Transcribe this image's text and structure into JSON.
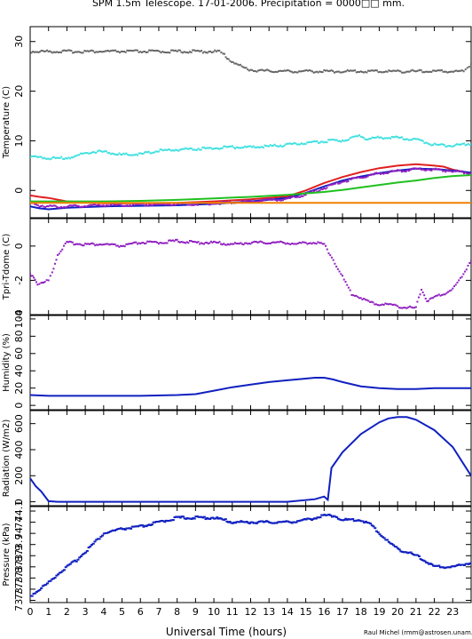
{
  "title": "SPM 1.5m Telescope. 17-01-2006. Precipitation = 0000□□ mm.",
  "xlabel": "Universal Time (hours)",
  "credit": "Raul Michel (rmm@astrosen.unam.mx)",
  "chart_data": [
    {
      "type": "line",
      "ylabel": "Temperature (C)",
      "xlim": [
        0,
        24
      ],
      "ylim": [
        -5.5,
        33
      ],
      "yticks": [
        0,
        10,
        20,
        30
      ],
      "series": [
        {
          "color": "#666666",
          "style": "dots",
          "x": [
            0,
            1,
            2,
            4,
            6,
            8,
            9,
            10.3,
            10.5,
            10.8,
            11.2,
            11.6,
            12,
            12.5,
            14,
            16,
            18,
            20,
            22,
            23.6,
            23.8,
            24
          ],
          "y": [
            28,
            28,
            28,
            28,
            28,
            28,
            28,
            28,
            27.5,
            26.5,
            25.5,
            24.8,
            24.3,
            24.1,
            24,
            24,
            24,
            24,
            24,
            24,
            24.8,
            25.5
          ]
        },
        {
          "color": "#40e0e0",
          "style": "dots",
          "x": [
            0,
            1,
            1.7,
            2.5,
            3,
            3.5,
            4,
            5,
            6,
            7,
            8,
            9,
            10,
            11,
            12,
            13,
            14,
            15,
            16,
            17,
            17.5,
            18,
            18.3,
            18.7,
            19,
            20,
            21,
            22,
            23,
            24
          ],
          "y": [
            6.8,
            6.5,
            6.5,
            6.8,
            7.6,
            7.8,
            7.8,
            7.2,
            7.3,
            8,
            8.2,
            8.4,
            8.5,
            8.7,
            8.7,
            8.9,
            9.2,
            9.6,
            9.9,
            10.1,
            10.6,
            11,
            10.4,
            10.6,
            10.6,
            10.6,
            10.2,
            9.2,
            9.0,
            9.5
          ]
        },
        {
          "color": "#e02020",
          "style": "line",
          "x": [
            0,
            0.5,
            1,
            2,
            4,
            6,
            8,
            10,
            12,
            14,
            15,
            16,
            17,
            18,
            19,
            20,
            21,
            22,
            22.5,
            23,
            23.5,
            24
          ],
          "y": [
            -1,
            -1.3,
            -1.5,
            -2.2,
            -2.6,
            -2.6,
            -2.5,
            -2.2,
            -1.8,
            -1.2,
            0,
            1.5,
            2.7,
            3.7,
            4.5,
            5.0,
            5.3,
            5.0,
            4.8,
            4.2,
            3.8,
            3.4
          ]
        },
        {
          "color": "#1020c0",
          "style": "line",
          "x": [
            0,
            0.5,
            1,
            2,
            4,
            6,
            8,
            10,
            12,
            14,
            15,
            16,
            17,
            18,
            19,
            20,
            21,
            22,
            23,
            24
          ],
          "y": [
            -3.2,
            -3.6,
            -3.8,
            -3.5,
            -3.2,
            -3.1,
            -3.0,
            -2.7,
            -2.2,
            -1.5,
            -0.5,
            0.8,
            2.0,
            2.8,
            3.5,
            4.0,
            4.4,
            4.3,
            4.0,
            3.6
          ]
        },
        {
          "color": "#9020c0",
          "style": "dots",
          "x": [
            0,
            0.5,
            1,
            2,
            4,
            6,
            8,
            10,
            12,
            14,
            15,
            16,
            17,
            18,
            19,
            20,
            21,
            22,
            23,
            24
          ],
          "y": [
            -2.5,
            -3.0,
            -3.3,
            -3.2,
            -3.0,
            -2.9,
            -2.8,
            -2.6,
            -2.2,
            -1.7,
            -0.8,
            0.5,
            1.8,
            2.7,
            3.4,
            3.9,
            4.3,
            4.2,
            3.9,
            3.5
          ]
        },
        {
          "color": "#20c020",
          "style": "line",
          "x": [
            0,
            2,
            4,
            6,
            8,
            10,
            12,
            13,
            14,
            15,
            16,
            17,
            18,
            19,
            20,
            21,
            22,
            23,
            24
          ],
          "y": [
            -2.2,
            -2.2,
            -2.2,
            -2.1,
            -1.9,
            -1.6,
            -1.3,
            -1.1,
            -0.9,
            -0.6,
            -0.3,
            0.1,
            0.6,
            1.1,
            1.6,
            2.0,
            2.5,
            2.9,
            3.1
          ]
        },
        {
          "color": "#f08000",
          "style": "line",
          "x": [
            0,
            24
          ],
          "y": [
            -2.5,
            -2.5
          ]
        }
      ]
    },
    {
      "type": "scatter",
      "ylabel": "Tpri-Tdome (C)",
      "xlim": [
        0,
        24
      ],
      "ylim": [
        -4,
        1.6
      ],
      "yticks": [
        0,
        -2,
        -4
      ],
      "ytick_labels": [
        "0",
        "-2",
        "-4"
      ],
      "series": [
        {
          "color": "#9020c0",
          "x": [
            0,
            0.2,
            0.4,
            0.6,
            0.8,
            1.0,
            1.2,
            1.5,
            2,
            3,
            4,
            5,
            6,
            7,
            8,
            9,
            10,
            11,
            12,
            13,
            14,
            14.5,
            15,
            15.5,
            16,
            16.5,
            17,
            17.5,
            18,
            18.5,
            19,
            19.5,
            20,
            20.5,
            21,
            21.3,
            21.6,
            22,
            22.5,
            23,
            23.5,
            24
          ],
          "y": [
            -1.6,
            -1.8,
            -2.2,
            -2.2,
            -2.1,
            -2.0,
            -1.5,
            -0.5,
            0.2,
            0.1,
            0.1,
            0.0,
            0.2,
            0.2,
            0.3,
            0.2,
            0.2,
            0.1,
            0.2,
            0.2,
            0.2,
            0.1,
            0.2,
            0.2,
            0.1,
            -0.8,
            -1.8,
            -2.8,
            -3.0,
            -3.3,
            -3.4,
            -3.4,
            -3.5,
            -3.6,
            -3.6,
            -2.5,
            -3.2,
            -3.0,
            -2.8,
            -2.5,
            -1.8,
            -0.8
          ]
        }
      ]
    },
    {
      "type": "line",
      "ylabel": "Humidity (%)",
      "xlim": [
        0,
        24
      ],
      "ylim": [
        -5,
        104
      ],
      "yticks": [
        0,
        20,
        40,
        60,
        80,
        100
      ],
      "series": [
        {
          "color": "#1020c0",
          "x": [
            0,
            1,
            2,
            4,
            6,
            8,
            9,
            10,
            11,
            12,
            13,
            14,
            15,
            15.5,
            16,
            16.5,
            17,
            18,
            19,
            20,
            21,
            22,
            23,
            24
          ],
          "y": [
            12,
            11,
            11,
            11,
            11,
            12,
            13,
            17,
            21,
            24,
            27,
            29,
            31,
            32,
            32,
            30,
            27,
            22,
            20,
            19,
            19,
            20,
            20,
            20
          ]
        }
      ]
    },
    {
      "type": "line",
      "ylabel": "Radiation (W/m2)",
      "xlim": [
        0,
        24
      ],
      "ylim": [
        -30,
        700
      ],
      "yticks": [
        0,
        200,
        400,
        600
      ],
      "series": [
        {
          "color": "#1020c0",
          "x": [
            0,
            0.3,
            0.6,
            1,
            1.5,
            2,
            4,
            6,
            8,
            10,
            12,
            14,
            15.5,
            16,
            16.2,
            16.4,
            17,
            18,
            19,
            19.5,
            20,
            20.5,
            21,
            22,
            23,
            24
          ],
          "y": [
            180,
            120,
            80,
            5,
            0,
            0,
            0,
            0,
            0,
            0,
            0,
            0,
            20,
            40,
            15,
            260,
            380,
            520,
            610,
            640,
            650,
            650,
            630,
            550,
            420,
            200
          ]
        }
      ]
    },
    {
      "type": "scatter",
      "ylabel": "Pressure (kPa)",
      "xlim": [
        0,
        24
      ],
      "ylim": [
        73.69,
        74.12
      ],
      "yticks": [
        73.7,
        73.75,
        73.8,
        73.85,
        73.9,
        73.95,
        74.0,
        74.05,
        74.1
      ],
      "ytick_labels": [
        "73.7",
        "73.7",
        "73.8",
        "73.8",
        "73.9",
        "73.9",
        "74",
        "74",
        "74.1"
      ],
      "series": [
        {
          "color": "#1020c0",
          "x": [
            0,
            0.5,
            1,
            1.5,
            2,
            2.5,
            3,
            3.5,
            4,
            4.5,
            5,
            6,
            7,
            8,
            9,
            10,
            11,
            12,
            13,
            14,
            15,
            16,
            16.5,
            17,
            18,
            18.5,
            19,
            19.5,
            20,
            21,
            22,
            23,
            24
          ],
          "y": [
            73.72,
            73.75,
            73.78,
            73.82,
            73.85,
            73.88,
            73.92,
            73.96,
            74.0,
            74.01,
            74.02,
            74.03,
            74.05,
            74.07,
            74.07,
            74.07,
            74.05,
            74.05,
            74.05,
            74.05,
            74.06,
            74.08,
            74.08,
            74.06,
            74.06,
            74.04,
            74.0,
            73.96,
            73.93,
            73.9,
            73.85,
            73.85,
            73.87
          ]
        }
      ]
    }
  ]
}
